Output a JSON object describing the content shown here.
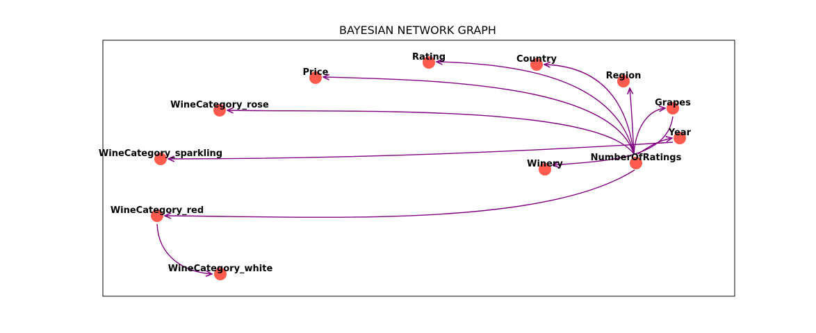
{
  "title": "BAYESIAN NETWORK GRAPH",
  "colors": {
    "node": "#ff5a4e",
    "edge": "#800080",
    "frame": "#000000"
  },
  "nodes": [
    {
      "id": "price",
      "label": "Price"
    },
    {
      "id": "rating",
      "label": "Rating"
    },
    {
      "id": "country",
      "label": "Country"
    },
    {
      "id": "region",
      "label": "Region"
    },
    {
      "id": "grapes",
      "label": "Grapes"
    },
    {
      "id": "year",
      "label": "Year"
    },
    {
      "id": "numberofratings",
      "label": "NumberOfRatings"
    },
    {
      "id": "winery",
      "label": "Winery"
    },
    {
      "id": "winecategory_rose",
      "label": "WineCategory_rose"
    },
    {
      "id": "winecategory_sparkling",
      "label": "WineCategory_sparkling"
    },
    {
      "id": "winecategory_red",
      "label": "WineCategory_red"
    },
    {
      "id": "winecategory_white",
      "label": "WineCategory_white"
    }
  ],
  "edges": [
    {
      "from": "NumberOfRatings",
      "to": "Price"
    },
    {
      "from": "NumberOfRatings",
      "to": "Rating"
    },
    {
      "from": "NumberOfRatings",
      "to": "Country"
    },
    {
      "from": "NumberOfRatings",
      "to": "Region"
    },
    {
      "from": "NumberOfRatings",
      "to": "Grapes"
    },
    {
      "from": "NumberOfRatings",
      "to": "Year"
    },
    {
      "from": "NumberOfRatings",
      "to": "WineCategory_rose"
    },
    {
      "from": "NumberOfRatings",
      "to": "WineCategory_red"
    },
    {
      "from": "Year",
      "to": "WineCategory_sparkling"
    },
    {
      "from": "Grapes",
      "to": "Winery"
    },
    {
      "from": "WineCategory_red",
      "to": "WineCategory_white"
    }
  ]
}
